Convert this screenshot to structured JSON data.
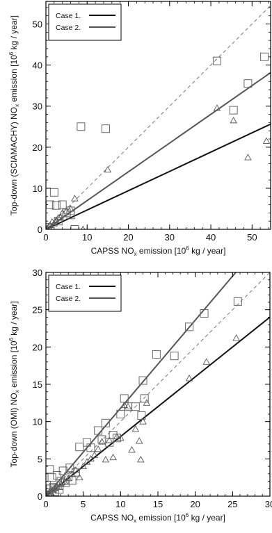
{
  "chart_data": [
    {
      "type": "scatter",
      "xlabel": {
        "pre": "CAPSS NO",
        "sub": "x",
        "mid": " emission [10",
        "sup": "6",
        "post": " kg / year]"
      },
      "ylabel": {
        "pre": "Top-down (SCIAMACHY) NO",
        "sub": "x",
        "mid": " emission [10",
        "sup": "6",
        "post": " kg / year]"
      },
      "xlim": [
        0,
        54.5
      ],
      "ylim": [
        0,
        55.5
      ],
      "xticks": [
        0,
        10,
        20,
        30,
        40,
        50
      ],
      "yticks": [
        0,
        10,
        20,
        30,
        40,
        50
      ],
      "legend": {
        "placement": "top-left",
        "entries": [
          "Case 1.",
          "Case 2."
        ]
      },
      "lines": [
        {
          "name": "Case 1.",
          "slope": 0.47,
          "color": "#111111"
        },
        {
          "name": "Case 2.",
          "slope": 0.7,
          "color": "#555555"
        }
      ],
      "reference_line": {
        "slope": 1,
        "style": "dashed"
      },
      "series": [
        {
          "name": "Case 1.",
          "marker": "triangle",
          "points": [
            [
              0.3,
              0.3
            ],
            [
              0.6,
              0.5
            ],
            [
              1,
              1
            ],
            [
              1.5,
              1.8
            ],
            [
              2,
              1.4
            ],
            [
              2.5,
              2.2
            ],
            [
              3,
              2.8
            ],
            [
              3.5,
              3
            ],
            [
              4,
              4
            ],
            [
              5,
              4.5
            ],
            [
              6,
              5
            ],
            [
              7,
              7.5
            ],
            [
              9,
              0
            ],
            [
              15,
              14.5
            ],
            [
              41.5,
              29.5
            ],
            [
              45.5,
              26.5
            ],
            [
              49,
              17.5
            ],
            [
              53.5,
              21.5
            ]
          ]
        },
        {
          "name": "Case 2.",
          "marker": "square",
          "points": [
            [
              0.5,
              0.5
            ],
            [
              1,
              6
            ],
            [
              2,
              9
            ],
            [
              2.5,
              5.8
            ],
            [
              3,
              2
            ],
            [
              4,
              6
            ],
            [
              5,
              4
            ],
            [
              6,
              4.5
            ],
            [
              6,
              3.5
            ],
            [
              7,
              0
            ],
            [
              8.5,
              25
            ],
            [
              14.5,
              24.5
            ],
            [
              41.5,
              41
            ],
            [
              45.5,
              29
            ],
            [
              49,
              35.5
            ],
            [
              53,
              42
            ]
          ]
        }
      ]
    },
    {
      "type": "scatter",
      "xlabel": {
        "pre": "CAPSS NO",
        "sub": "x",
        "mid": " emission [10",
        "sup": "6",
        "post": " kg / year]"
      },
      "ylabel": {
        "pre": "Top-down (OMI) NO",
        "sub": "x",
        "mid": " emission [10",
        "sup": "6",
        "post": " kg / year]"
      },
      "xlim": [
        0,
        30
      ],
      "ylim": [
        0,
        30
      ],
      "xticks": [
        0,
        5,
        10,
        15,
        20,
        25,
        30
      ],
      "yticks": [
        0,
        5,
        10,
        15,
        20,
        25,
        30
      ],
      "legend": {
        "placement": "top-left",
        "entries": [
          "Case 1.",
          "Case 2."
        ]
      },
      "lines": [
        {
          "name": "Case 1.",
          "slope": 0.8,
          "color": "#111111"
        },
        {
          "name": "Case 2.",
          "slope": 1.18,
          "color": "#555555"
        }
      ],
      "reference_line": {
        "slope": 1,
        "style": "dashed"
      },
      "series": [
        {
          "name": "Case 1.",
          "marker": "triangle",
          "points": [
            [
              0.2,
              0.2
            ],
            [
              0.4,
              0.3
            ],
            [
              0.5,
              0.6
            ],
            [
              0.7,
              0.4
            ],
            [
              0.8,
              0.9
            ],
            [
              1,
              0.8
            ],
            [
              1.2,
              1.1
            ],
            [
              1.5,
              1.3
            ],
            [
              1.8,
              1.2
            ],
            [
              2,
              1.6
            ],
            [
              2.2,
              2
            ],
            [
              2.5,
              1.9
            ],
            [
              3,
              2.4
            ],
            [
              3.5,
              3
            ],
            [
              4,
              3.5
            ],
            [
              4.5,
              2.5
            ],
            [
              5,
              4
            ],
            [
              5.5,
              4.6
            ],
            [
              6,
              5
            ],
            [
              6.5,
              5.5
            ],
            [
              7,
              6.3
            ],
            [
              7.5,
              7.3
            ],
            [
              8,
              4.9
            ],
            [
              8.5,
              7.5
            ],
            [
              9,
              5.2
            ],
            [
              9.5,
              8
            ],
            [
              10,
              7.8
            ],
            [
              10.5,
              12.2
            ],
            [
              11,
              12
            ],
            [
              11.5,
              6.2
            ],
            [
              12,
              9
            ],
            [
              12.5,
              7.4
            ],
            [
              12.7,
              4.9
            ],
            [
              13,
              10
            ],
            [
              13.5,
              12.5
            ],
            [
              19.2,
              15.8
            ],
            [
              21.5,
              18
            ],
            [
              25.5,
              21.2
            ]
          ]
        },
        {
          "name": "Case 2.",
          "marker": "square",
          "points": [
            [
              0.1,
              1.5
            ],
            [
              0.3,
              0.2
            ],
            [
              0.5,
              3.6
            ],
            [
              0.6,
              1
            ],
            [
              0.8,
              2.5
            ],
            [
              1,
              1.2
            ],
            [
              1.2,
              0.6
            ],
            [
              1.5,
              2.8
            ],
            [
              1.8,
              0.9
            ],
            [
              2,
              2
            ],
            [
              2.3,
              3.4
            ],
            [
              2.6,
              1.8
            ],
            [
              3,
              2.6
            ],
            [
              3.2,
              3.8
            ],
            [
              3.5,
              2.1
            ],
            [
              4,
              3.2
            ],
            [
              4.5,
              6.6
            ],
            [
              5.5,
              7.2
            ],
            [
              6,
              6.5
            ],
            [
              7,
              8.8
            ],
            [
              7.5,
              7.6
            ],
            [
              8,
              9.8
            ],
            [
              8.5,
              7.2
            ],
            [
              9,
              8.2
            ],
            [
              9.5,
              7.8
            ],
            [
              10,
              11
            ],
            [
              10.5,
              13.1
            ],
            [
              11,
              12
            ],
            [
              12,
              12
            ],
            [
              13,
              15.5
            ],
            [
              12.8,
              10.8
            ],
            [
              13.2,
              13.1
            ],
            [
              14.8,
              19
            ],
            [
              17.2,
              18.8
            ],
            [
              19.2,
              22.7
            ],
            [
              21.2,
              24.5
            ],
            [
              25.7,
              26.1
            ]
          ]
        }
      ]
    }
  ]
}
